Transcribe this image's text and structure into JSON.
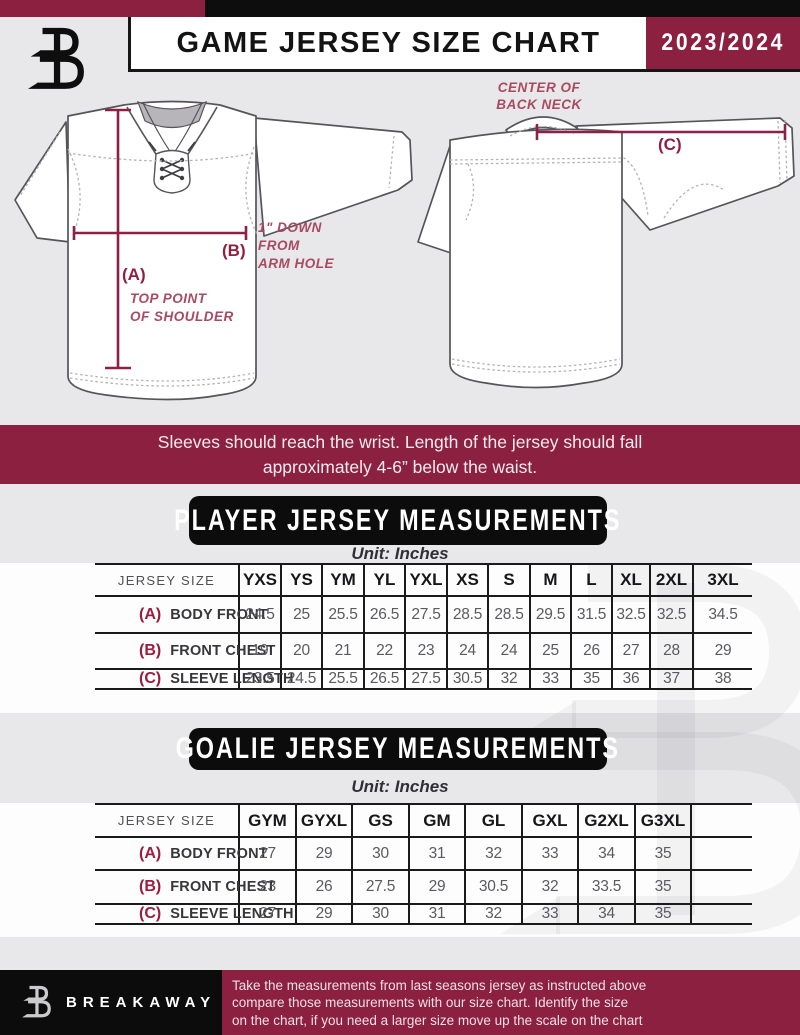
{
  "header": {
    "title": "GAME JERSEY SIZE CHART",
    "season": "2023/2024"
  },
  "diagram": {
    "front": {
      "label_a": "(A)",
      "note_a_line1": "TOP POINT",
      "note_a_line2": "OF SHOULDER",
      "label_b": "(B)",
      "note_b_line1": "1\" DOWN",
      "note_b_line2": "FROM",
      "note_b_line3": "ARM HOLE"
    },
    "back": {
      "label_c": "(C)",
      "note_c_line1": "CENTER OF",
      "note_c_line2": "BACK NECK"
    },
    "fit_note_line1": "Sleeves should reach the wrist. Length of the jersey should fall",
    "fit_note_line2": "approximately 4-6” below the waist."
  },
  "player_section": {
    "title": "PLAYER JERSEY MEASUREMENTS",
    "unit": "Unit: Inches",
    "table": {
      "size_header": "JERSEY SIZE",
      "sizes": [
        "YXS",
        "YS",
        "YM",
        "YL",
        "YXL",
        "XS",
        "S",
        "M",
        "L",
        "XL",
        "2XL",
        "3XL"
      ],
      "rows": [
        {
          "key": "(A)",
          "label": "BODY FRONT",
          "values": [
            "24.5",
            "25",
            "25.5",
            "26.5",
            "27.5",
            "28.5",
            "28.5",
            "29.5",
            "31.5",
            "32.5",
            "32.5",
            "34.5"
          ]
        },
        {
          "key": "(B)",
          "label": "FRONT CHEST",
          "values": [
            "19",
            "20",
            "21",
            "22",
            "23",
            "24",
            "24",
            "25",
            "26",
            "27",
            "28",
            "29"
          ]
        },
        {
          "key": "(C)",
          "label": "SLEEVE LENGTH",
          "values": [
            "23.5",
            "24.5",
            "25.5",
            "26.5",
            "27.5",
            "30.5",
            "32",
            "33",
            "35",
            "36",
            "37",
            "38"
          ]
        }
      ]
    }
  },
  "goalie_section": {
    "title": "GOALIE JERSEY MEASUREMENTS",
    "unit": "Unit: Inches",
    "table": {
      "size_header": "JERSEY SIZE",
      "sizes": [
        "GYM",
        "GYXL",
        "GS",
        "GM",
        "GL",
        "GXL",
        "G2XL",
        "G3XL"
      ],
      "rows": [
        {
          "key": "(A)",
          "label": "BODY FRONT",
          "values": [
            "27",
            "29",
            "30",
            "31",
            "32",
            "33",
            "34",
            "35"
          ]
        },
        {
          "key": "(B)",
          "label": "FRONT CHEST",
          "values": [
            "23",
            "26",
            "27.5",
            "29",
            "30.5",
            "32",
            "33.5",
            "35"
          ]
        },
        {
          "key": "(C)",
          "label": "SLEEVE LENGTH",
          "values": [
            "27",
            "29",
            "30",
            "31",
            "32",
            "33",
            "34",
            "35"
          ]
        }
      ]
    }
  },
  "footer": {
    "brand": "BREAKAWAY",
    "note_line1": "Take the measurements from last seasons jersey as instructed above",
    "note_line2": "compare those measurements  with our size chart. Identify the size",
    "note_line3": "on the chart, if you need a larger size move up the scale on the chart"
  },
  "colors": {
    "maroon": "#8C2041",
    "black": "#0C0C0C",
    "page_gray": "#E8E7E9",
    "annotation_maroon": "#A84A62",
    "table_key_maroon": "#9A1C3E"
  }
}
